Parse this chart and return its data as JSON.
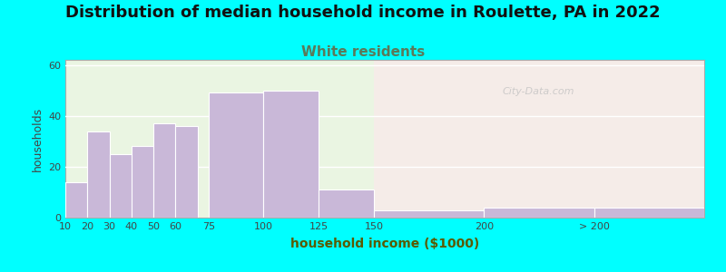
{
  "title": "Distribution of median household income in Roulette, PA in 2022",
  "subtitle": "White residents",
  "xlabel": "household income ($1000)",
  "ylabel": "households",
  "background_outer": "#00FFFF",
  "bar_color": "#c9b8d8",
  "bar_edgecolor": "#ffffff",
  "title_fontsize": 13,
  "subtitle_fontsize": 11,
  "subtitle_color": "#5a7a5a",
  "xlabel_color": "#5a5a00",
  "title_color": "#111111",
  "values": [
    14,
    34,
    25,
    28,
    37,
    36,
    49,
    50,
    11,
    3,
    4,
    4
  ],
  "bar_widths": [
    10,
    10,
    10,
    10,
    10,
    10,
    25,
    25,
    25,
    50,
    50,
    50
  ],
  "bar_lefts": [
    10,
    20,
    30,
    40,
    50,
    60,
    75,
    100,
    125,
    150,
    200,
    250
  ],
  "xtick_positions": [
    10,
    20,
    30,
    40,
    50,
    60,
    75,
    100,
    125,
    150,
    200,
    250
  ],
  "xtick_labels": [
    "10",
    "20",
    "30",
    "40",
    "50",
    "60",
    "75",
    "100",
    "125",
    "150",
    "200",
    "> 200"
  ],
  "ylim": [
    0,
    62
  ],
  "yticks": [
    0,
    20,
    40,
    60
  ],
  "watermark": "City-Data.com",
  "xlim_left": 10,
  "xlim_right": 300,
  "divider_x": 150,
  "bg_left": "#eaf5e2",
  "bg_right": "#f5ece8"
}
